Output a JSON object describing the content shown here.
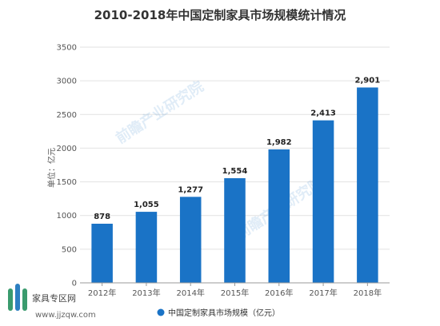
{
  "chart_data": {
    "type": "bar",
    "title": "2010-2018年中国定制家具市场规模统计情况",
    "ylabel": "单位：亿元",
    "xlabel": "",
    "categories": [
      "2012年",
      "2013年",
      "2014年",
      "2015年",
      "2016年",
      "2017年",
      "2018年"
    ],
    "series": [
      {
        "name": "中国定制家具市场规模（亿元）",
        "values": [
          878,
          1055,
          1277,
          1554,
          1982,
          2413,
          2901
        ],
        "labels": [
          "878",
          "1,055",
          "1,277",
          "1,554",
          "1,982",
          "2,413",
          "2,901"
        ],
        "color": "#1a73c6"
      }
    ],
    "ylim": [
      0,
      3500
    ],
    "yticks": [
      0,
      500,
      1000,
      1500,
      2000,
      2500,
      3000,
      3500
    ],
    "grid": true,
    "legend": "bottom"
  },
  "watermark": {
    "logo_text": "家具专区网",
    "url": "www.jjzqw.com",
    "overlay_text": "前瞻产业研究院"
  }
}
